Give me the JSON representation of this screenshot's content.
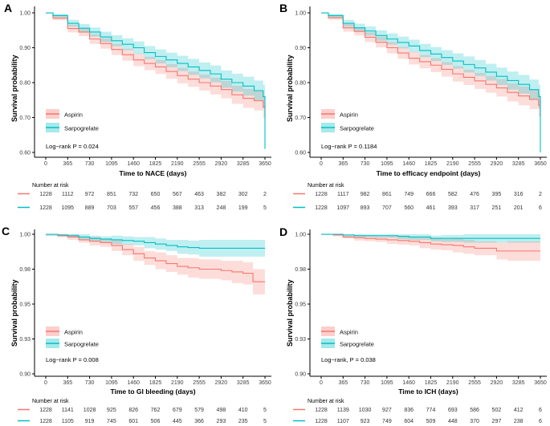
{
  "figure": {
    "background": "#ffffff",
    "legend": {
      "aspirin": "Aspirin",
      "sarpogrelate": "Sarpogrelate"
    },
    "colors": {
      "aspirin_line": "#F8766D",
      "aspirin_fill": "#F8766D",
      "sarpogrelate_line": "#00BFC4",
      "sarpogrelate_fill": "#00BFC4",
      "axis": "#000000",
      "tick_text": "#404040"
    },
    "xticks": [
      0,
      365,
      730,
      1095,
      1460,
      1825,
      2190,
      2555,
      2920,
      3285,
      3650
    ]
  },
  "chart_data": [
    {
      "type": "line",
      "subtype": "kaplan-meier",
      "letter": "A",
      "ylabel": "Survival probability",
      "xlabel": "Time to NACE (days)",
      "logrank": "Log−rank P = 0.024",
      "xticks": [
        0,
        365,
        730,
        1095,
        1460,
        1825,
        2190,
        2555,
        2920,
        3285,
        3650
      ],
      "yticks": {
        "values": [
          1.0,
          0.9,
          0.8,
          0.7,
          0.6
        ],
        "labels": [
          "1.00",
          "0.90",
          "0.80",
          "0.70",
          "0.60"
        ]
      },
      "ylim": [
        0.6,
        1.0
      ],
      "legend_position": "inside-bottom-left",
      "grid": false,
      "series": [
        {
          "name": "Aspirin",
          "x": [
            0,
            120,
            365,
            550,
            730,
            910,
            1095,
            1275,
            1460,
            1640,
            1825,
            2005,
            2190,
            2370,
            2555,
            2740,
            2920,
            3100,
            3285,
            3470,
            3620,
            3650
          ],
          "y": [
            1.0,
            0.985,
            0.955,
            0.945,
            0.925,
            0.912,
            0.895,
            0.88,
            0.865,
            0.855,
            0.845,
            0.832,
            0.82,
            0.81,
            0.8,
            0.79,
            0.78,
            0.765,
            0.755,
            0.748,
            0.73,
            0.7
          ],
          "hw": [
            0.002,
            0.006,
            0.011,
            0.012,
            0.014,
            0.015,
            0.016,
            0.017,
            0.018,
            0.019,
            0.02,
            0.021,
            0.022,
            0.022,
            0.023,
            0.024,
            0.025,
            0.026,
            0.027,
            0.028,
            0.032,
            0.04
          ]
        },
        {
          "name": "Sarpogrelate",
          "x": [
            0,
            120,
            365,
            550,
            730,
            910,
            1095,
            1275,
            1460,
            1640,
            1825,
            2005,
            2190,
            2370,
            2555,
            2740,
            2920,
            3100,
            3285,
            3470,
            3620,
            3650
          ],
          "y": [
            1.0,
            0.992,
            0.97,
            0.956,
            0.945,
            0.931,
            0.92,
            0.91,
            0.9,
            0.886,
            0.875,
            0.865,
            0.855,
            0.845,
            0.835,
            0.825,
            0.81,
            0.8,
            0.79,
            0.777,
            0.76,
            0.61
          ],
          "hw": [
            0.002,
            0.005,
            0.01,
            0.012,
            0.013,
            0.015,
            0.016,
            0.017,
            0.018,
            0.019,
            0.02,
            0.021,
            0.022,
            0.023,
            0.023,
            0.024,
            0.025,
            0.026,
            0.027,
            0.029,
            0.034,
            0.055
          ]
        }
      ],
      "risk_table": {
        "title": "Number at risk",
        "rows": [
          {
            "name": "Aspirin",
            "values": [
              1228,
              1112,
              972,
              851,
              732,
              650,
              567,
              463,
              382,
              302,
              2
            ]
          },
          {
            "name": "Sarpogrelate",
            "values": [
              1228,
              1095,
              889,
              703,
              557,
              456,
              388,
              313,
              248,
              199,
              5
            ]
          }
        ]
      }
    },
    {
      "type": "line",
      "subtype": "kaplan-meier",
      "letter": "B",
      "ylabel": "Survival probability",
      "xlabel": "Time to efficacy endpoint (days)",
      "logrank": "Log−rank P = 0.1184",
      "xticks": [
        0,
        365,
        730,
        1095,
        1460,
        1825,
        2190,
        2555,
        2920,
        3285,
        3650
      ],
      "yticks": {
        "values": [
          1.0,
          0.9,
          0.8,
          0.7,
          0.6
        ],
        "labels": [
          "1.00",
          "0.90",
          "0.80",
          "0.70",
          "0.60"
        ]
      },
      "ylim": [
        0.6,
        1.0
      ],
      "legend_position": "inside-bottom-left",
      "grid": false,
      "series": [
        {
          "name": "Aspirin",
          "x": [
            0,
            120,
            365,
            550,
            730,
            910,
            1095,
            1275,
            1460,
            1640,
            1825,
            2005,
            2190,
            2370,
            2555,
            2740,
            2920,
            3100,
            3285,
            3470,
            3620,
            3650
          ],
          "y": [
            1.0,
            0.986,
            0.957,
            0.947,
            0.93,
            0.916,
            0.9,
            0.885,
            0.87,
            0.86,
            0.85,
            0.838,
            0.825,
            0.815,
            0.805,
            0.795,
            0.785,
            0.772,
            0.762,
            0.752,
            0.735,
            0.705
          ],
          "hw": [
            0.002,
            0.006,
            0.011,
            0.012,
            0.014,
            0.015,
            0.016,
            0.017,
            0.018,
            0.019,
            0.02,
            0.021,
            0.022,
            0.022,
            0.023,
            0.024,
            0.025,
            0.026,
            0.027,
            0.028,
            0.032,
            0.04
          ]
        },
        {
          "name": "Sarpogrelate",
          "x": [
            0,
            120,
            365,
            550,
            730,
            910,
            1095,
            1275,
            1460,
            1640,
            1825,
            2005,
            2190,
            2370,
            2555,
            2740,
            2920,
            3100,
            3285,
            3470,
            3620,
            3650
          ],
          "y": [
            1.0,
            0.992,
            0.97,
            0.957,
            0.948,
            0.935,
            0.925,
            0.915,
            0.905,
            0.892,
            0.882,
            0.872,
            0.862,
            0.852,
            0.842,
            0.83,
            0.818,
            0.806,
            0.795,
            0.78,
            0.76,
            0.6
          ],
          "hw": [
            0.002,
            0.005,
            0.01,
            0.012,
            0.013,
            0.015,
            0.016,
            0.017,
            0.018,
            0.019,
            0.02,
            0.021,
            0.022,
            0.023,
            0.023,
            0.024,
            0.025,
            0.026,
            0.027,
            0.029,
            0.034,
            0.055
          ]
        }
      ],
      "risk_table": {
        "title": "Number at risk",
        "rows": [
          {
            "name": "Aspirin",
            "values": [
              1228,
              1117,
              982,
              861,
              749,
              666,
              582,
              476,
              395,
              316,
              2
            ]
          },
          {
            "name": "Sarpogrelate",
            "values": [
              1228,
              1097,
              893,
              707,
              560,
              461,
              393,
              317,
              251,
              201,
              6
            ]
          }
        ]
      }
    },
    {
      "type": "line",
      "subtype": "kaplan-meier",
      "letter": "C",
      "ylabel": "Survival probability",
      "xlabel": "Time to GI bleeding (days)",
      "logrank": "Log−rank P = 0.008",
      "xticks": [
        0,
        365,
        730,
        1095,
        1460,
        1825,
        2190,
        2555,
        2920,
        3285,
        3650
      ],
      "yticks": {
        "values": [
          1.0,
          0.975,
          0.95,
          0.925,
          0.9
        ],
        "labels": [
          "1.00",
          "0.98",
          "0.95",
          "0.93",
          "0.90"
        ]
      },
      "ylim": [
        0.9,
        1.0
      ],
      "legend_position": "inside-bottom-left",
      "grid": false,
      "series": [
        {
          "name": "Aspirin",
          "x": [
            0,
            200,
            365,
            550,
            730,
            910,
            1095,
            1275,
            1460,
            1640,
            1825,
            2005,
            2190,
            2370,
            2555,
            2920,
            3100,
            3285,
            3450,
            3650
          ],
          "y": [
            1.0,
            0.999,
            0.998,
            0.996,
            0.995,
            0.994,
            0.992,
            0.989,
            0.986,
            0.983,
            0.981,
            0.979,
            0.977,
            0.976,
            0.975,
            0.974,
            0.973,
            0.972,
            0.966,
            0.966
          ],
          "hw": [
            0.001,
            0.001,
            0.002,
            0.002,
            0.003,
            0.003,
            0.004,
            0.004,
            0.005,
            0.005,
            0.006,
            0.006,
            0.006,
            0.007,
            0.007,
            0.007,
            0.008,
            0.008,
            0.009,
            0.009
          ]
        },
        {
          "name": "Sarpogrelate",
          "x": [
            0,
            200,
            365,
            550,
            730,
            910,
            1095,
            1275,
            1460,
            1640,
            1825,
            2005,
            2190,
            2370,
            2555,
            2920,
            3100,
            3285,
            3450,
            3650
          ],
          "y": [
            1.0,
            0.9995,
            0.999,
            0.998,
            0.997,
            0.9965,
            0.996,
            0.9955,
            0.995,
            0.994,
            0.993,
            0.992,
            0.991,
            0.9905,
            0.99,
            0.99,
            0.99,
            0.99,
            0.99,
            0.99
          ],
          "hw": [
            0.001,
            0.001,
            0.001,
            0.002,
            0.002,
            0.002,
            0.003,
            0.003,
            0.003,
            0.004,
            0.004,
            0.004,
            0.005,
            0.005,
            0.006,
            0.006,
            0.006,
            0.006,
            0.006,
            0.006
          ]
        }
      ],
      "risk_table": {
        "title": "Number at risk",
        "rows": [
          {
            "name": "Aspirin",
            "values": [
              1228,
              1141,
              1028,
              925,
              826,
              762,
              679,
              579,
              498,
              410,
              5
            ]
          },
          {
            "name": "Sarpogrelate",
            "values": [
              1228,
              1105,
              919,
              745,
              601,
              506,
              445,
              366,
              293,
              235,
              5
            ]
          }
        ]
      }
    },
    {
      "type": "line",
      "subtype": "kaplan-meier",
      "letter": "D",
      "ylabel": "Survival probability",
      "xlabel": "Time to ICH (days)",
      "logrank": "Log−rank, P = 0.038",
      "xticks": [
        0,
        365,
        730,
        1095,
        1460,
        1825,
        2190,
        2555,
        2920,
        3285,
        3650
      ],
      "yticks": {
        "values": [
          1.0,
          0.975,
          0.95,
          0.925,
          0.9
        ],
        "labels": [
          "1.00",
          "0.98",
          "0.95",
          "0.93",
          "0.90"
        ]
      },
      "ylim": [
        0.9,
        1.0
      ],
      "legend_position": "inside-bottom-left",
      "grid": false,
      "series": [
        {
          "name": "Aspirin",
          "x": [
            0,
            200,
            365,
            550,
            730,
            910,
            1095,
            1275,
            1460,
            1640,
            1825,
            2005,
            2190,
            2370,
            2555,
            2920,
            3100,
            3285,
            3450,
            3650
          ],
          "y": [
            1.0,
            0.9995,
            0.998,
            0.9975,
            0.997,
            0.9965,
            0.996,
            0.9955,
            0.995,
            0.994,
            0.993,
            0.9925,
            0.992,
            0.991,
            0.99,
            0.988,
            0.988,
            0.988,
            0.988,
            0.988
          ],
          "hw": [
            0.0005,
            0.001,
            0.001,
            0.002,
            0.002,
            0.002,
            0.003,
            0.003,
            0.003,
            0.004,
            0.004,
            0.004,
            0.005,
            0.005,
            0.005,
            0.006,
            0.007,
            0.007,
            0.007,
            0.007
          ]
        },
        {
          "name": "Sarpogrelate",
          "x": [
            0,
            200,
            365,
            550,
            730,
            910,
            1095,
            1275,
            1460,
            1640,
            1825,
            2005,
            2190,
            2370,
            2555,
            2920,
            3100,
            3285,
            3450,
            3650
          ],
          "y": [
            1.0,
            1.0,
            0.9995,
            0.999,
            0.999,
            0.999,
            0.999,
            0.9985,
            0.998,
            0.998,
            0.997,
            0.997,
            0.997,
            0.997,
            0.997,
            0.997,
            0.997,
            0.997,
            0.997,
            0.997
          ],
          "hw": [
            0.0005,
            0.0005,
            0.001,
            0.001,
            0.001,
            0.0015,
            0.0015,
            0.002,
            0.002,
            0.002,
            0.002,
            0.0025,
            0.0025,
            0.003,
            0.003,
            0.003,
            0.003,
            0.003,
            0.003,
            0.003
          ]
        }
      ],
      "risk_table": {
        "title": "Number at risk",
        "rows": [
          {
            "name": "Aspirin",
            "values": [
              1228,
              1139,
              1030,
              927,
              836,
              774,
              693,
              586,
              502,
              412,
              6
            ]
          },
          {
            "name": "Sarpogrelate",
            "values": [
              1228,
              1107,
              923,
              749,
              604,
              509,
              448,
              370,
              297,
              238,
              6
            ]
          }
        ]
      }
    }
  ]
}
